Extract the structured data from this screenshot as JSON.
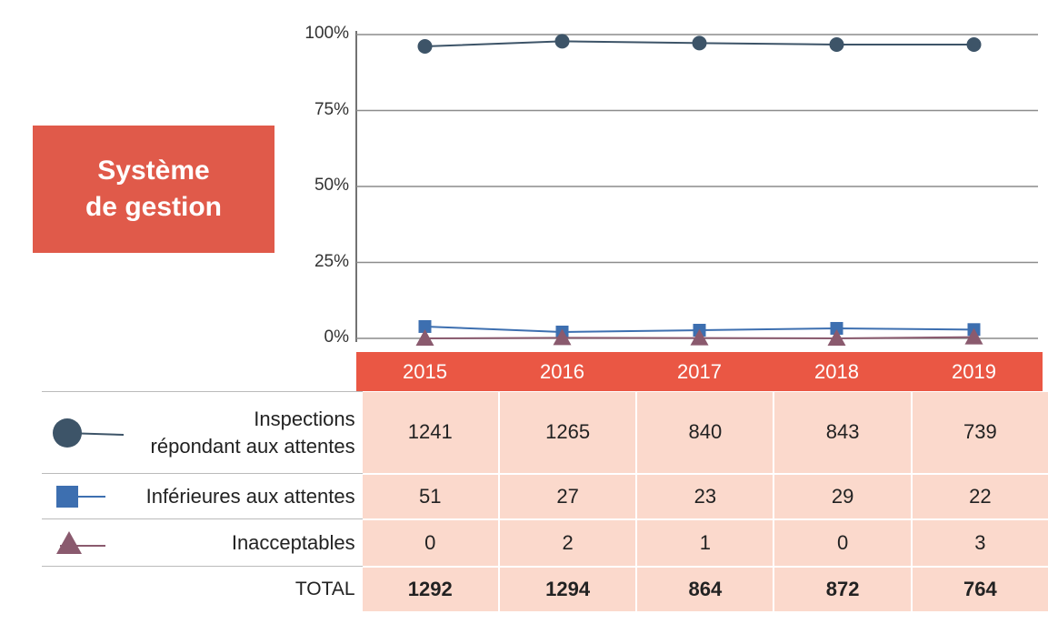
{
  "title_lines": [
    "Système",
    "de gestion"
  ],
  "chart_data": {
    "type": "line",
    "categories": [
      "2015",
      "2016",
      "2017",
      "2018",
      "2019"
    ],
    "ylim": [
      0,
      100
    ],
    "yticks": [
      "0%",
      "25%",
      "50%",
      "75%",
      "100%"
    ],
    "grid": true,
    "series": [
      {
        "name": "Inspections répondant aux attentes",
        "values": [
          96.1,
          97.8,
          97.2,
          96.7,
          96.7
        ],
        "color": "#3d5468",
        "marker": "circle"
      },
      {
        "name": "Inférieures aux attentes",
        "values": [
          3.9,
          2.1,
          2.7,
          3.3,
          2.9
        ],
        "color": "#3d6fb0",
        "marker": "square"
      },
      {
        "name": "Inacceptables",
        "values": [
          0.0,
          0.2,
          0.1,
          0.0,
          0.4
        ],
        "color": "#8a5a6e",
        "marker": "triangle"
      }
    ]
  },
  "table": {
    "rows": [
      {
        "label_lines": [
          "Inspections",
          "répondant aux attentes"
        ],
        "values": [
          "1241",
          "1265",
          "840",
          "843",
          "739"
        ],
        "icon": "circle-line-icon"
      },
      {
        "label_lines": [
          "Inférieures aux attentes"
        ],
        "values": [
          "51",
          "27",
          "23",
          "29",
          "22"
        ],
        "icon": "square-line-icon"
      },
      {
        "label_lines": [
          "Inacceptables"
        ],
        "values": [
          "0",
          "2",
          "1",
          "0",
          "3"
        ],
        "icon": "triangle-line-icon"
      }
    ],
    "total": {
      "label": "TOTAL",
      "values": [
        "1292",
        "1294",
        "864",
        "872",
        "764"
      ]
    }
  }
}
